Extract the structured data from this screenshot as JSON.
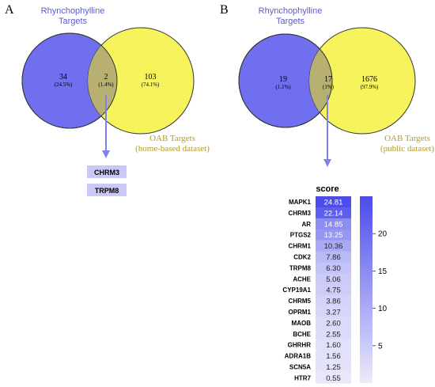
{
  "panel_a": {
    "letter": "A",
    "left_title_line1": "Rhynchophylline",
    "left_title_line2": "Targets",
    "right_title_line1": "OAB Targets",
    "right_title_line2": "(home-based dataset)",
    "left_only_count": "34",
    "left_only_pct": "(24.5%)",
    "overlap_count": "2",
    "overlap_pct": "(1.4%)",
    "right_only_count": "103",
    "right_only_pct": "(74.1%)",
    "overlap_genes": [
      "CHRM3",
      "TRPM8"
    ]
  },
  "panel_b": {
    "letter": "B",
    "left_title_line1": "Rhynchophylline",
    "left_title_line2": "Targets",
    "right_title_line1": "OAB Targets",
    "right_title_line2": "(public dataset)",
    "left_only_count": "19",
    "left_only_pct": "(1.1%)",
    "overlap_count": "17",
    "overlap_pct": "(1%)",
    "right_only_count": "1676",
    "right_only_pct": "(97.9%)",
    "colorbar_ticks": [
      "20",
      "15",
      "10",
      "5"
    ]
  },
  "colors": {
    "venn_blue": "#6f6ff0",
    "venn_yellow": "#f7f35c",
    "overlap": "#b7b070",
    "arrow": "#8080ec",
    "title_blue": "#5b5bd6",
    "title_gold": "#b09a2a",
    "heat_max": "#4b4bec",
    "heat_min": "#ecebfb",
    "gene_box": "#c9c8f6"
  },
  "chart_data": {
    "type": "heatmap",
    "title": "score",
    "rows": [
      "MAPK1",
      "CHRM3",
      "AR",
      "PTGS2",
      "CHRM1",
      "CDK2",
      "TRPM8",
      "ACHE",
      "CYP19A1",
      "CHRM5",
      "OPRM1",
      "MAOB",
      "BCHE",
      "GHRHR",
      "ADRA1B",
      "SCN5A",
      "HTR7"
    ],
    "values": [
      24.81,
      22.14,
      14.85,
      13.25,
      10.36,
      7.86,
      6.3,
      5.06,
      4.75,
      3.86,
      3.27,
      2.6,
      2.55,
      1.6,
      1.56,
      1.25,
      0.55
    ],
    "labels": [
      "24.81",
      "22.14",
      "14.85",
      "13.25",
      "10.36",
      "7.86",
      "6.30",
      "5.06",
      "4.75",
      "3.86",
      "3.27",
      "2.60",
      "2.55",
      "1.60",
      "1.56",
      "1.25",
      "0.55"
    ],
    "colorbar_range": [
      0,
      25
    ]
  }
}
